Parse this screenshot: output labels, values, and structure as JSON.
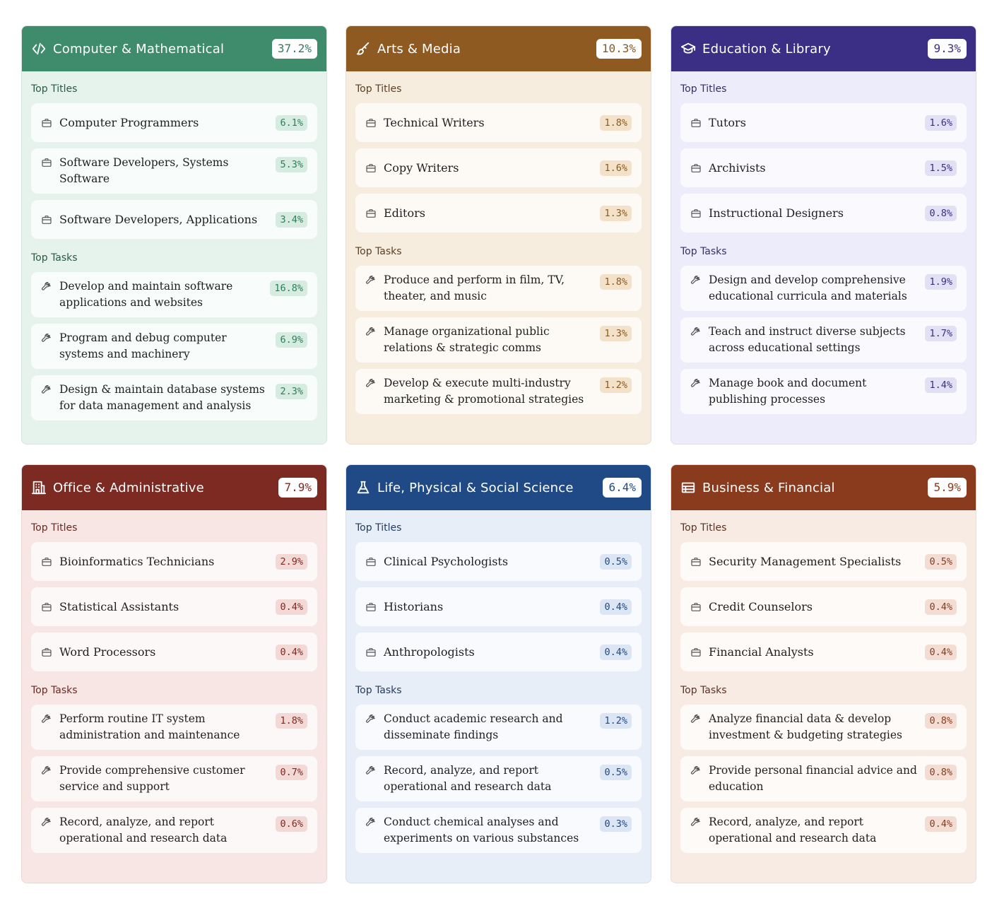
{
  "labels": {
    "titles": "Top Titles",
    "tasks": "Top Tasks"
  },
  "cards": [
    {
      "title": "Computer & Mathematical",
      "pct": "37.2%",
      "icon": "code-icon",
      "colors": {
        "header": "#3f8c6c",
        "body": "#e5f3ec",
        "accent": "#2f7d5c",
        "label": "#2c5a45",
        "pill": "#d6ece1"
      },
      "titles": [
        {
          "label": "Computer Programmers",
          "pct": "6.1%"
        },
        {
          "label": "Software Developers, Systems Software",
          "pct": "5.3%"
        },
        {
          "label": "Software Developers, Applications",
          "pct": "3.4%"
        }
      ],
      "tasks": [
        {
          "label": "Develop and maintain software applications and websites",
          "pct": "16.8%"
        },
        {
          "label": "Program and debug computer systems and machinery",
          "pct": "6.9%"
        },
        {
          "label": "Design & maintain database systems for data management and analysis",
          "pct": "2.3%"
        }
      ]
    },
    {
      "title": "Arts & Media",
      "pct": "10.3%",
      "icon": "brush-icon",
      "colors": {
        "header": "#8e5a22",
        "body": "#f7eddf",
        "accent": "#8a5a1f",
        "label": "#5c4023",
        "pill": "#f3e2c9"
      },
      "titles": [
        {
          "label": "Technical Writers",
          "pct": "1.8%"
        },
        {
          "label": "Copy Writers",
          "pct": "1.6%"
        },
        {
          "label": "Editors",
          "pct": "1.3%"
        }
      ],
      "tasks": [
        {
          "label": "Produce and perform in film, TV, theater, and music",
          "pct": "1.8%"
        },
        {
          "label": "Manage organizational public relations & strategic comms",
          "pct": "1.3%"
        },
        {
          "label": "Develop & execute multi-industry marketing & promotional strategies",
          "pct": "1.2%"
        }
      ]
    },
    {
      "title": "Education & Library",
      "pct": "9.3%",
      "icon": "graduation-cap-icon",
      "colors": {
        "header": "#3a2f85",
        "body": "#ececfa",
        "accent": "#3a2f85",
        "label": "#35306a",
        "pill": "#e1e0f5"
      },
      "titles": [
        {
          "label": "Tutors",
          "pct": "1.6%"
        },
        {
          "label": "Archivists",
          "pct": "1.5%"
        },
        {
          "label": "Instructional Designers",
          "pct": "0.8%"
        }
      ],
      "tasks": [
        {
          "label": "Design and develop comprehensive educational curricula and materials",
          "pct": "1.9%"
        },
        {
          "label": "Teach and instruct diverse subjects across educational settings",
          "pct": "1.7%"
        },
        {
          "label": "Manage book and document publishing processes",
          "pct": "1.4%"
        }
      ]
    },
    {
      "title": "Office & Administrative",
      "pct": "7.9%",
      "icon": "building-icon",
      "colors": {
        "header": "#7c2a22",
        "body": "#f8e6e4",
        "accent": "#7c2a22",
        "label": "#6a2a24",
        "pill": "#f3d9d6"
      },
      "titles": [
        {
          "label": "Bioinformatics Technicians",
          "pct": "2.9%"
        },
        {
          "label": "Statistical Assistants",
          "pct": "0.4%"
        },
        {
          "label": "Word Processors",
          "pct": "0.4%"
        }
      ],
      "tasks": [
        {
          "label": "Perform routine IT system administration and maintenance",
          "pct": "1.8%"
        },
        {
          "label": "Provide comprehensive customer service and support",
          "pct": "0.7%"
        },
        {
          "label": "Record, analyze, and report operational and research data",
          "pct": "0.6%"
        }
      ]
    },
    {
      "title": "Life, Physical & Social Science",
      "pct": "6.4%",
      "icon": "flask-icon",
      "colors": {
        "header": "#1f4a86",
        "body": "#e7eef8",
        "accent": "#1f4a86",
        "label": "#243c60",
        "pill": "#dbe5f4"
      },
      "titles": [
        {
          "label": "Clinical Psychologists",
          "pct": "0.5%"
        },
        {
          "label": "Historians",
          "pct": "0.4%"
        },
        {
          "label": "Anthropologists",
          "pct": "0.4%"
        }
      ],
      "tasks": [
        {
          "label": "Conduct academic research and disseminate findings",
          "pct": "1.2%"
        },
        {
          "label": "Record, analyze, and report operational and research data",
          "pct": "0.5%"
        },
        {
          "label": "Conduct chemical analyses and experiments on various substances",
          "pct": "0.3%"
        }
      ]
    },
    {
      "title": "Business & Financial",
      "pct": "5.9%",
      "icon": "table-icon",
      "colors": {
        "header": "#8a3b1e",
        "body": "#f8ebe4",
        "accent": "#8a3b1e",
        "label": "#5c3323",
        "pill": "#f3ddd2"
      },
      "titles": [
        {
          "label": "Security Management Specialists",
          "pct": "0.5%"
        },
        {
          "label": "Credit Counselors",
          "pct": "0.4%"
        },
        {
          "label": "Financial Analysts",
          "pct": "0.4%"
        }
      ],
      "tasks": [
        {
          "label": "Analyze financial data & develop investment & budgeting strategies",
          "pct": "0.8%"
        },
        {
          "label": "Provide personal financial advice and education",
          "pct": "0.8%"
        },
        {
          "label": "Record, analyze, and report operational and research data",
          "pct": "0.4%"
        }
      ]
    }
  ]
}
